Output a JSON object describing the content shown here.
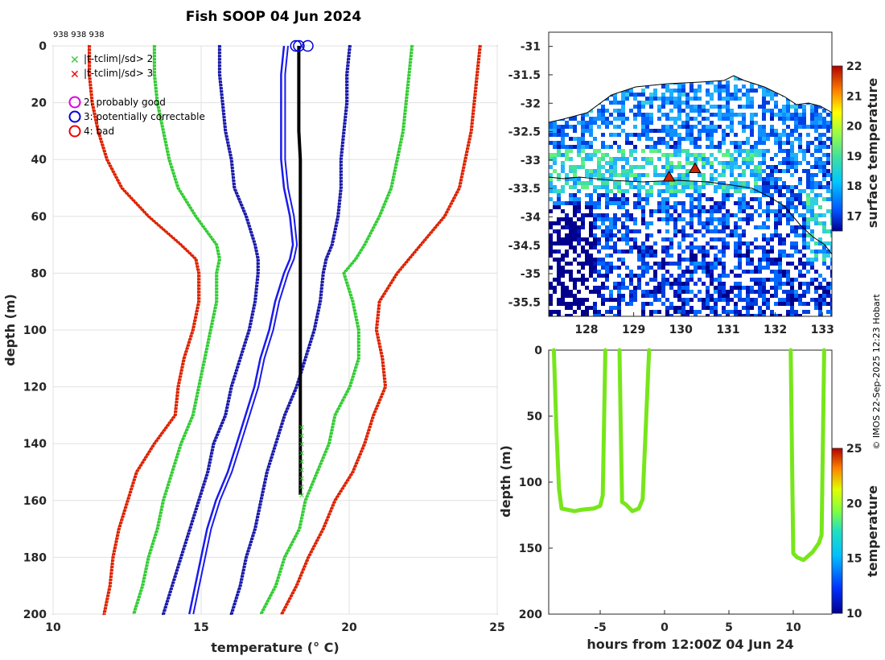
{
  "title": "Fish SOOP 04 Jun 2024",
  "station_ids": "938 938 938",
  "credit": "© IMOS 22-Sep-2025 12:23 Hobart",
  "colors": {
    "climatology_2sd": "#33cc33",
    "climatology_3sd": "#dd2200",
    "climatology_mean": "#1a1aee",
    "climatology_1sd": "#1a1aaa",
    "profile": "#000000",
    "flag_good": "#dd00dd",
    "flag_correctable": "#0000dd",
    "flag_bad": "#ee0000",
    "track": "#77e61a",
    "track_markers": "#cc2200"
  },
  "chart_data": [
    {
      "type": "line",
      "name": "profile",
      "xlabel": "temperature (° C)",
      "ylabel": "depth (m)",
      "xlim": [
        10,
        25
      ],
      "ylim": [
        200,
        0
      ],
      "xticks": [
        10,
        15,
        20,
        25
      ],
      "yticks": [
        0,
        20,
        40,
        60,
        80,
        100,
        120,
        140,
        160,
        180,
        200
      ],
      "grid": true,
      "depth": [
        0,
        10,
        20,
        30,
        40,
        50,
        60,
        70,
        75,
        80,
        90,
        100,
        110,
        120,
        130,
        140,
        150,
        160,
        170,
        180,
        190,
        200
      ],
      "series": [
        {
          "name": "clim_minus_3sd",
          "style": "dotted",
          "color": "#dd2200",
          "values": [
            11.2,
            11.2,
            11.3,
            11.5,
            11.8,
            12.3,
            13.2,
            14.3,
            14.8,
            14.9,
            14.9,
            14.7,
            14.4,
            14.2,
            14.1,
            13.4,
            12.8,
            12.5,
            12.2,
            12.0,
            11.9,
            11.7
          ]
        },
        {
          "name": "clim_plus_3sd",
          "style": "dotted",
          "color": "#dd2200",
          "values": [
            24.4,
            24.3,
            24.2,
            24.1,
            23.9,
            23.7,
            23.2,
            22.4,
            22.0,
            21.6,
            21.0,
            20.9,
            21.1,
            21.2,
            20.8,
            20.5,
            20.1,
            19.5,
            19.1,
            18.6,
            18.2,
            17.7
          ]
        },
        {
          "name": "clim_minus_2sd",
          "style": "dotted",
          "color": "#33cc33",
          "values": [
            13.4,
            13.4,
            13.5,
            13.7,
            13.9,
            14.2,
            14.8,
            15.5,
            15.6,
            15.5,
            15.5,
            15.3,
            15.1,
            14.9,
            14.7,
            14.3,
            14.0,
            13.7,
            13.5,
            13.2,
            13.0,
            12.7
          ]
        },
        {
          "name": "clim_plus_2sd",
          "style": "dotted",
          "color": "#33cc33",
          "values": [
            22.1,
            22.0,
            21.9,
            21.8,
            21.6,
            21.4,
            21.0,
            20.5,
            20.2,
            19.8,
            20.1,
            20.3,
            20.3,
            20.0,
            19.5,
            19.3,
            18.9,
            18.5,
            18.3,
            17.8,
            17.5,
            17.0
          ]
        },
        {
          "name": "clim_minus_1sd",
          "style": "dotted",
          "color": "#1a1aaa",
          "values": [
            15.6,
            15.6,
            15.7,
            15.8,
            16.0,
            16.1,
            16.5,
            16.8,
            16.9,
            16.9,
            16.8,
            16.6,
            16.3,
            16.0,
            15.8,
            15.4,
            15.2,
            14.9,
            14.6,
            14.3,
            14.0,
            13.7
          ]
        },
        {
          "name": "clim_plus_1sd",
          "style": "dotted",
          "color": "#1a1aaa",
          "values": [
            20.0,
            19.9,
            19.9,
            19.8,
            19.7,
            19.7,
            19.6,
            19.4,
            19.2,
            19.1,
            19.0,
            18.8,
            18.5,
            18.2,
            17.8,
            17.5,
            17.2,
            17.0,
            16.8,
            16.5,
            16.3,
            16.0
          ]
        },
        {
          "name": "clim_mean",
          "style": "solid",
          "color": "#1a1aee",
          "values": [
            17.8,
            17.7,
            17.7,
            17.7,
            17.7,
            17.8,
            18.0,
            18.1,
            18.0,
            17.8,
            17.5,
            17.3,
            17.0,
            16.8,
            16.5,
            16.2,
            15.9,
            15.5,
            15.2,
            15.0,
            14.8,
            14.6
          ]
        },
        {
          "name": "observed_profile",
          "style": "solid",
          "color": "#000000",
          "values": [
            18.3,
            18.3,
            18.3,
            18.3,
            18.35,
            18.35,
            18.35,
            18.35,
            18.35,
            18.35,
            18.35,
            18.35,
            18.35,
            18.35,
            18.35
          ]
        }
      ],
      "observed_depth": [
        0,
        10,
        20,
        30,
        40,
        50,
        60,
        70,
        80,
        90,
        100,
        110,
        120,
        130,
        158
      ],
      "flag_markers": [
        {
          "label": "|t-tclim|/sd> 2",
          "marker": "x",
          "color": "#33cc33"
        },
        {
          "label": "|t-tclim|/sd> 3",
          "marker": "x",
          "color": "#ee0000"
        },
        {
          "label": "2: probably good",
          "marker": "o",
          "color": "#dd00dd"
        },
        {
          "label": "3: potentially correctable",
          "marker": "o",
          "color": "#0000dd"
        },
        {
          "label": "4: bad",
          "marker": "o",
          "color": "#ee0000"
        }
      ],
      "x_markers_depths": [
        134,
        137,
        140,
        143,
        146,
        149,
        152,
        155,
        158
      ]
    },
    {
      "type": "heatmap",
      "name": "sst_map",
      "xlim": [
        127.2,
        133.2
      ],
      "ylim": [
        -35.75,
        -30.75
      ],
      "xticks": [
        128,
        129,
        130,
        131,
        132,
        133
      ],
      "yticks": [
        -31,
        -31.5,
        -32,
        -32.5,
        -33,
        -33.5,
        -34,
        -34.5,
        -35,
        -35.5
      ],
      "colorbar": {
        "label": "surface temperature",
        "range": [
          16.5,
          22
        ],
        "ticks": [
          17,
          18,
          19,
          20,
          21,
          22
        ]
      },
      "track_points": [
        [
          129.75,
          -33.3
        ],
        [
          130.3,
          -33.15
        ]
      ]
    },
    {
      "type": "line",
      "name": "depth_time",
      "xlabel": "hours from 12:00Z 04 Jun 24",
      "ylabel": "depth (m)",
      "xlim": [
        -9,
        13
      ],
      "ylim": [
        200,
        0
      ],
      "xticks": [
        -5,
        0,
        5,
        10
      ],
      "yticks": [
        0,
        50,
        100,
        150,
        200
      ],
      "colorbar": {
        "label": "temperature",
        "range": [
          10,
          25
        ],
        "ticks": [
          10,
          15,
          20,
          25
        ]
      },
      "segments": [
        {
          "x": [
            -8.6,
            -8.4,
            -8.2,
            -8.0,
            -7.5,
            -7.0,
            -6.5,
            -5.5,
            -5.0,
            -4.8,
            -4.6
          ],
          "y": [
            0,
            60,
            105,
            120,
            121,
            122,
            121,
            120,
            118,
            110,
            0
          ]
        },
        {
          "x": [
            -3.5,
            -3.4,
            -3.3,
            -3.0,
            -2.5,
            -2.0,
            -1.7,
            -1.2
          ],
          "y": [
            0,
            60,
            115,
            117,
            122,
            120,
            113,
            0
          ]
        },
        {
          "x": [
            9.8,
            9.9,
            10.0,
            10.3,
            10.8,
            11.5,
            12.0,
            12.2,
            12.4
          ],
          "y": [
            0,
            80,
            154,
            157,
            159,
            153,
            146,
            140,
            0
          ]
        }
      ]
    }
  ]
}
